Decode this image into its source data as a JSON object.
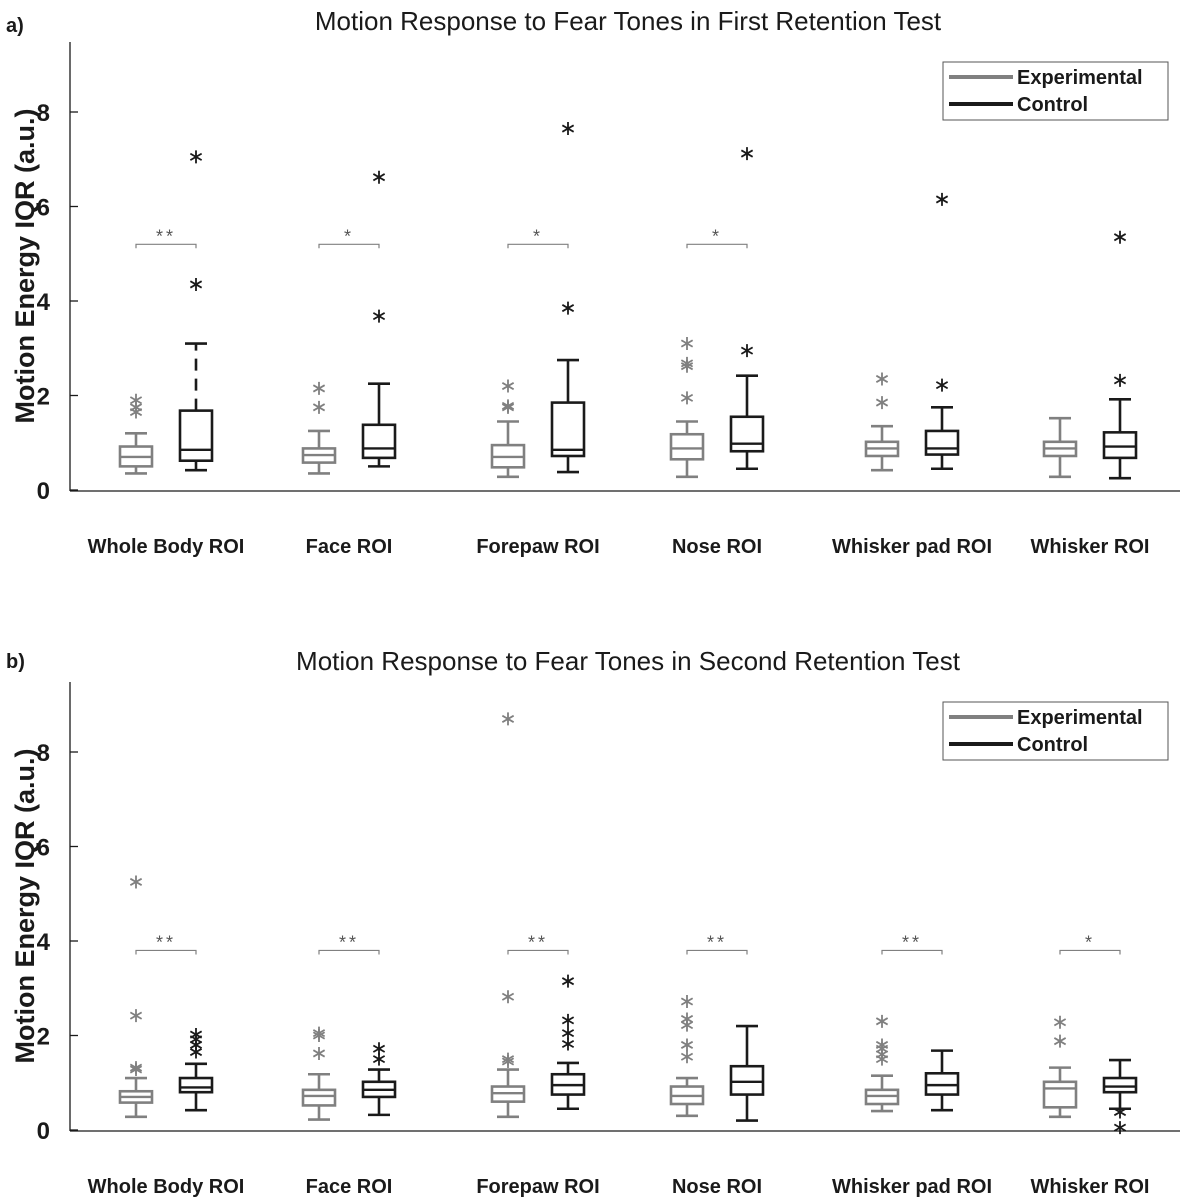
{
  "chart_data": [
    {
      "type": "box",
      "panel_label": "a)",
      "title": "Motion Response to Fear Tones in First Retention Test",
      "ylabel": "Motion Energy IQR (a.u.)",
      "ylim": [
        0,
        9.5
      ],
      "yticks": [
        0,
        2,
        4,
        6,
        8
      ],
      "categories": [
        "Whole Body ROI",
        "Face ROI",
        "Forepaw ROI",
        "Nose ROI",
        "Whisker pad ROI",
        "Whisker ROI"
      ],
      "legend": {
        "position": "top-right",
        "entries": [
          {
            "name": "Experimental",
            "color": "#808080"
          },
          {
            "name": "Control",
            "color": "#1a1a1a"
          }
        ]
      },
      "significance": [
        "**",
        "*",
        "*",
        "*",
        "",
        ""
      ],
      "series": [
        {
          "name": "Experimental",
          "color": "#808080",
          "boxes": [
            {
              "whislo": 0.35,
              "q1": 0.5,
              "med": 0.7,
              "q3": 0.92,
              "whishi": 1.2,
              "fliers": [
                1.65,
                1.75,
                1.9
              ]
            },
            {
              "whislo": 0.35,
              "q1": 0.58,
              "med": 0.74,
              "q3": 0.88,
              "whishi": 1.25,
              "fliers": [
                1.75,
                2.15
              ]
            },
            {
              "whislo": 0.28,
              "q1": 0.48,
              "med": 0.7,
              "q3": 0.95,
              "whishi": 1.45,
              "fliers": [
                1.75,
                1.78,
                2.2
              ]
            },
            {
              "whislo": 0.28,
              "q1": 0.65,
              "med": 0.88,
              "q3": 1.18,
              "whishi": 1.45,
              "fliers": [
                1.95,
                2.62,
                2.68,
                3.1
              ]
            },
            {
              "whislo": 0.42,
              "q1": 0.72,
              "med": 0.88,
              "q3": 1.02,
              "whishi": 1.35,
              "fliers": [
                1.85,
                2.35
              ]
            },
            {
              "whislo": 0.28,
              "q1": 0.72,
              "med": 0.88,
              "q3": 1.02,
              "whishi": 1.52,
              "fliers": []
            }
          ]
        },
        {
          "name": "Control",
          "color": "#1a1a1a",
          "boxes": [
            {
              "whislo": 0.42,
              "q1": 0.62,
              "med": 0.85,
              "q3": 1.68,
              "whishi": 3.1,
              "fliers": [
                4.35,
                7.05
              ]
            },
            {
              "whislo": 0.5,
              "q1": 0.68,
              "med": 0.88,
              "q3": 1.38,
              "whishi": 2.25,
              "fliers": [
                3.68,
                6.62
              ]
            },
            {
              "whislo": 0.38,
              "q1": 0.72,
              "med": 0.85,
              "q3": 1.85,
              "whishi": 2.75,
              "fliers": [
                3.85,
                7.65
              ]
            },
            {
              "whislo": 0.45,
              "q1": 0.82,
              "med": 0.98,
              "q3": 1.55,
              "whishi": 2.42,
              "fliers": [
                2.95,
                7.12
              ]
            },
            {
              "whislo": 0.45,
              "q1": 0.75,
              "med": 0.88,
              "q3": 1.25,
              "whishi": 1.75,
              "fliers": [
                2.22,
                6.15
              ]
            },
            {
              "whislo": 0.25,
              "q1": 0.68,
              "med": 0.92,
              "q3": 1.22,
              "whishi": 1.92,
              "fliers": [
                2.32,
                5.35
              ]
            }
          ]
        }
      ]
    },
    {
      "type": "box",
      "panel_label": "b)",
      "title": "Motion Response to Fear Tones in Second Retention Test",
      "ylabel": "Motion Energy IQR (a.u.)",
      "ylim": [
        0,
        9.5
      ],
      "yticks": [
        0,
        2,
        4,
        6,
        8
      ],
      "categories": [
        "Whole Body ROI",
        "Face ROI",
        "Forepaw ROI",
        "Nose ROI",
        "Whisker pad ROI",
        "Whisker ROI"
      ],
      "legend": {
        "position": "top-right",
        "entries": [
          {
            "name": "Experimental",
            "color": "#808080"
          },
          {
            "name": "Control",
            "color": "#1a1a1a"
          }
        ]
      },
      "significance": [
        "**",
        "**",
        "**",
        "**",
        "**",
        "*"
      ],
      "series": [
        {
          "name": "Experimental",
          "color": "#808080",
          "boxes": [
            {
              "whislo": 0.28,
              "q1": 0.58,
              "med": 0.7,
              "q3": 0.82,
              "whishi": 1.1,
              "fliers": [
                1.28,
                1.32,
                2.42,
                5.25
              ]
            },
            {
              "whislo": 0.22,
              "q1": 0.52,
              "med": 0.72,
              "q3": 0.85,
              "whishi": 1.18,
              "fliers": [
                1.62,
                2.0,
                2.05
              ]
            },
            {
              "whislo": 0.28,
              "q1": 0.6,
              "med": 0.78,
              "q3": 0.92,
              "whishi": 1.28,
              "fliers": [
                1.45,
                1.5,
                2.82,
                8.7
              ]
            },
            {
              "whislo": 0.3,
              "q1": 0.55,
              "med": 0.72,
              "q3": 0.92,
              "whishi": 1.1,
              "fliers": [
                1.55,
                1.8,
                2.22,
                2.35,
                2.72
              ]
            },
            {
              "whislo": 0.4,
              "q1": 0.55,
              "med": 0.72,
              "q3": 0.85,
              "whishi": 1.15,
              "fliers": [
                1.5,
                1.6,
                1.72,
                1.8,
                2.3
              ]
            },
            {
              "whislo": 0.28,
              "q1": 0.48,
              "med": 0.88,
              "q3": 1.02,
              "whishi": 1.32,
              "fliers": [
                1.88,
                2.28
              ]
            }
          ]
        },
        {
          "name": "Control",
          "color": "#1a1a1a",
          "boxes": [
            {
              "whislo": 0.42,
              "q1": 0.8,
              "med": 0.9,
              "q3": 1.1,
              "whishi": 1.4,
              "fliers": [
                1.65,
                1.8,
                1.92,
                2.02
              ]
            },
            {
              "whislo": 0.32,
              "q1": 0.7,
              "med": 0.85,
              "q3": 1.02,
              "whishi": 1.28,
              "fliers": [
                1.5,
                1.72
              ]
            },
            {
              "whislo": 0.45,
              "q1": 0.75,
              "med": 0.95,
              "q3": 1.18,
              "whishi": 1.42,
              "fliers": [
                1.82,
                2.05,
                2.32,
                3.15
              ]
            },
            {
              "whislo": 0.2,
              "q1": 0.75,
              "med": 1.02,
              "q3": 1.35,
              "whishi": 2.2,
              "fliers": []
            },
            {
              "whislo": 0.42,
              "q1": 0.75,
              "med": 0.95,
              "q3": 1.2,
              "whishi": 1.68,
              "fliers": []
            },
            {
              "whislo": 0.45,
              "q1": 0.8,
              "med": 0.92,
              "q3": 1.1,
              "whishi": 1.48,
              "fliers": [
                0.05,
                0.38
              ]
            }
          ]
        }
      ]
    }
  ]
}
